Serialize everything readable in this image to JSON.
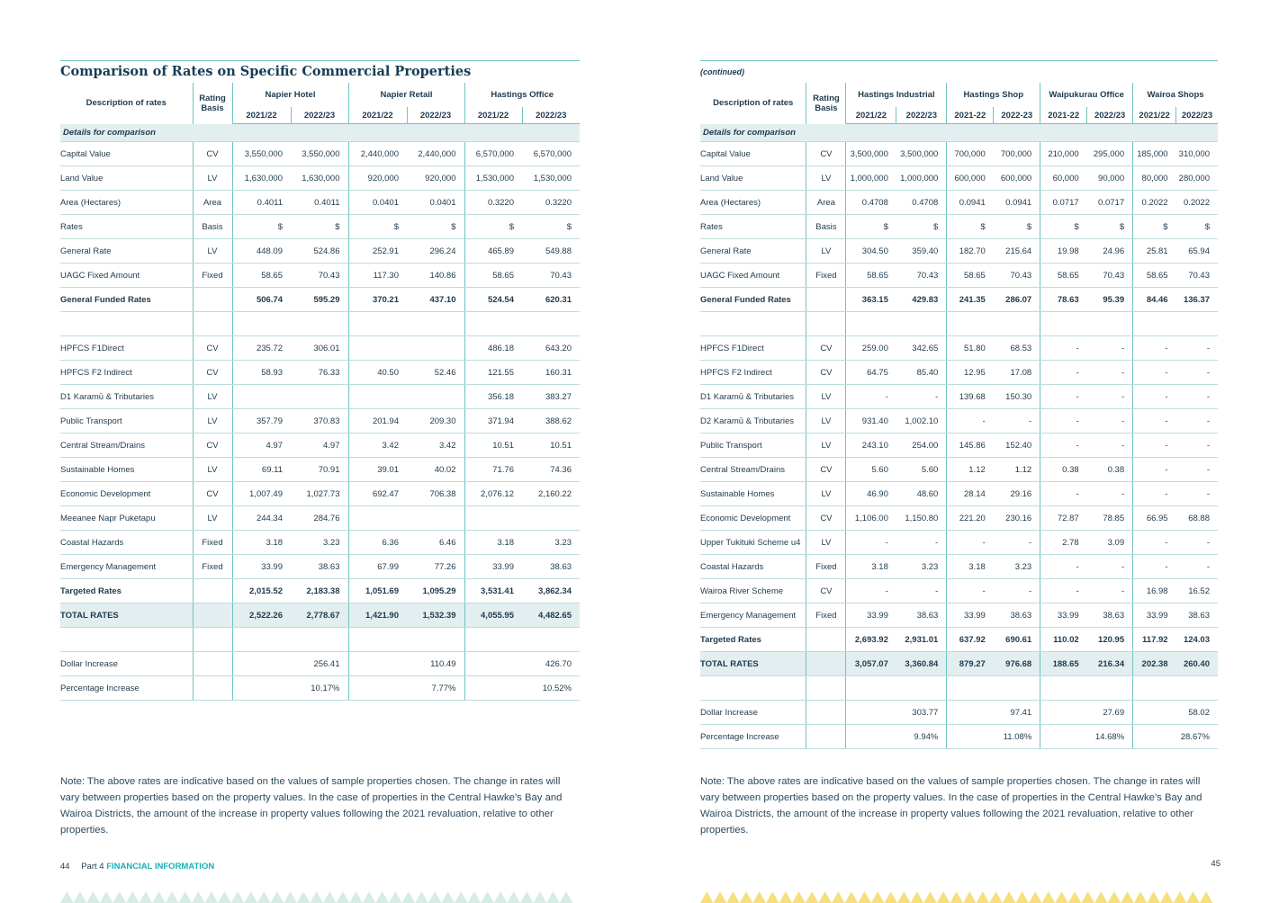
{
  "left": {
    "title": "Comparison of Rates on Specific Commercial Properties",
    "header": {
      "desc": "Description of rates",
      "basis": "Rating Basis",
      "groups": [
        "Napier Hotel",
        "Napier Retail",
        "Hastings Office"
      ],
      "years": [
        "2021/22",
        "2022/23",
        "2021/22",
        "2022/23",
        "2021/22",
        "2022/23"
      ]
    },
    "section_label": "Details for comparison",
    "rows": [
      {
        "label": "Capital Value",
        "basis": "CV",
        "v": [
          "3,550,000",
          "3,550,000",
          "2,440,000",
          "2,440,000",
          "6,570,000",
          "6,570,000"
        ]
      },
      {
        "label": "Land Value",
        "basis": "LV",
        "v": [
          "1,630,000",
          "1,630,000",
          "920,000",
          "920,000",
          "1,530,000",
          "1,530,000"
        ]
      },
      {
        "label": "Area (Hectares)",
        "basis": "Area",
        "v": [
          "0.4011",
          "0.4011",
          "0.0401",
          "0.0401",
          "0.3220",
          "0.3220"
        ]
      },
      {
        "label": "Rates",
        "basis": "Basis",
        "v": [
          "$",
          "$",
          "$",
          "$",
          "$",
          "$"
        ]
      },
      {
        "label": "General Rate",
        "basis": "LV",
        "v": [
          "448.09",
          "524.86",
          "252.91",
          "296.24",
          "465.89",
          "549.88"
        ]
      },
      {
        "label": "UAGC Fixed Amount",
        "basis": "Fixed",
        "v": [
          "58.65",
          "70.43",
          "117.30",
          "140.86",
          "58.65",
          "70.43"
        ]
      },
      {
        "label": "General Funded Rates",
        "basis": "",
        "v": [
          "506.74",
          "595.29",
          "370.21",
          "437.10",
          "524.54",
          "620.31"
        ],
        "bold": true
      },
      {
        "label": "",
        "basis": "",
        "v": [
          "",
          "",
          "",
          "",
          "",
          ""
        ]
      },
      {
        "label": "HPFCS F1Direct",
        "basis": "CV",
        "v": [
          "235.72",
          "306.01",
          "",
          "",
          "486.18",
          "643.20"
        ]
      },
      {
        "label": "HPFCS F2 Indirect",
        "basis": "CV",
        "v": [
          "58.93",
          "76.33",
          "40.50",
          "52.46",
          "121.55",
          "160.31"
        ]
      },
      {
        "label": "D1 Karamū & Tributaries",
        "basis": "LV",
        "v": [
          "",
          "",
          "",
          "",
          "356.18",
          "383.27"
        ]
      },
      {
        "label": "Public Transport",
        "basis": "LV",
        "v": [
          "357.79",
          "370.83",
          "201.94",
          "209.30",
          "371.94",
          "388.62"
        ]
      },
      {
        "label": "Central Stream/Drains",
        "basis": "CV",
        "v": [
          "4.97",
          "4.97",
          "3.42",
          "3.42",
          "10.51",
          "10.51"
        ]
      },
      {
        "label": "Sustainable Homes",
        "basis": "LV",
        "v": [
          "69.11",
          "70.91",
          "39.01",
          "40.02",
          "71.76",
          "74.36"
        ]
      },
      {
        "label": "Economic Development",
        "basis": "CV",
        "v": [
          "1,007.49",
          "1,027.73",
          "692.47",
          "706.38",
          "2,076.12",
          "2,160.22"
        ]
      },
      {
        "label": "Meeanee Napr Puketapu",
        "basis": "LV",
        "v": [
          "244.34",
          "284.76",
          "",
          "",
          "",
          ""
        ]
      },
      {
        "label": "Coastal Hazards",
        "basis": "Fixed",
        "v": [
          "3.18",
          "3.23",
          "6.36",
          "6.46",
          "3.18",
          "3.23"
        ]
      },
      {
        "label": "Emergency Management",
        "basis": "Fixed",
        "v": [
          "33.99",
          "38.63",
          "67.99",
          "77.26",
          "33.99",
          "38.63"
        ]
      },
      {
        "label": "Targeted Rates",
        "basis": "",
        "v": [
          "2,015.52",
          "2,183.38",
          "1,051.69",
          "1,095.29",
          "3,531.41",
          "3,862.34"
        ],
        "bold": true
      },
      {
        "label": "TOTAL RATES",
        "basis": "",
        "v": [
          "2,522.26",
          "2,778.67",
          "1,421.90",
          "1,532.39",
          "4,055.95",
          "4,482.65"
        ],
        "total": true
      },
      {
        "label": "",
        "basis": "",
        "v": [
          "",
          "",
          "",
          "",
          "",
          ""
        ]
      }
    ],
    "increase_rows": [
      {
        "label": "Dollar Increase",
        "v": [
          "256.41",
          "110.49",
          "426.70"
        ]
      },
      {
        "label": "Percentage Increase",
        "v": [
          "10.17%",
          "7.77%",
          "10.52%"
        ]
      }
    ],
    "note": "Note: The above rates are indicative based on the values of sample properties chosen. The change in rates will vary between properties based on the property values. In the case of properties in the Central Hawke’s Bay and Wairoa Districts, the amount of the increase in property values following the 2021 revaluation, relative to other properties.",
    "page_number": "44",
    "part": "Part 4",
    "section": "FINANCIAL INFORMATION"
  },
  "right": {
    "continued": "(continued)",
    "header": {
      "desc": "Description of rates",
      "basis": "Rating Basis",
      "groups": [
        "Hastings Industrial",
        "Hastings Shop",
        "Waipukurau Office",
        "Wairoa Shops"
      ],
      "years": [
        "2021/22",
        "2022/23",
        "2021-22",
        "2022-23",
        "2021-22",
        "2022/23",
        "2021/22",
        "2022/23"
      ]
    },
    "section_label": "Details for comparison",
    "rows": [
      {
        "label": "Capital Value",
        "basis": "CV",
        "v": [
          "3,500,000",
          "3,500,000",
          "700,000",
          "700,000",
          "210,000",
          "295,000",
          "185,000",
          "310,000"
        ]
      },
      {
        "label": "Land Value",
        "basis": "LV",
        "v": [
          "1,000,000",
          "1,000,000",
          "600,000",
          "600,000",
          "60,000",
          "90,000",
          "80,000",
          "280,000"
        ]
      },
      {
        "label": "Area (Hectares)",
        "basis": "Area",
        "v": [
          "0.4708",
          "0.4708",
          "0.0941",
          "0.0941",
          "0.0717",
          "0.0717",
          "0.2022",
          "0.2022"
        ]
      },
      {
        "label": "Rates",
        "basis": "Basis",
        "v": [
          "$",
          "$",
          "$",
          "$",
          "$",
          "$",
          "$",
          "$"
        ]
      },
      {
        "label": "General Rate",
        "basis": "LV",
        "v": [
          "304.50",
          "359.40",
          "182.70",
          "215.64",
          "19.98",
          "24.96",
          "25.81",
          "65.94"
        ]
      },
      {
        "label": "UAGC Fixed Amount",
        "basis": "Fixed",
        "v": [
          "58.65",
          "70.43",
          "58.65",
          "70.43",
          "58.65",
          "70.43",
          "58.65",
          "70.43"
        ]
      },
      {
        "label": "General Funded Rates",
        "basis": "",
        "v": [
          "363.15",
          "429.83",
          "241.35",
          "286.07",
          "78.63",
          "95.39",
          "84.46",
          "136.37"
        ],
        "bold": true
      },
      {
        "label": "",
        "basis": "",
        "v": [
          "",
          "",
          "",
          "",
          "",
          "",
          "",
          ""
        ]
      },
      {
        "label": "HPFCS F1Direct",
        "basis": "CV",
        "v": [
          "259.00",
          "342.65",
          "51.80",
          "68.53",
          "-",
          "-",
          "-",
          "-"
        ]
      },
      {
        "label": "HPFCS F2 Indirect",
        "basis": "CV",
        "v": [
          "64.75",
          "85.40",
          "12.95",
          "17.08",
          "-",
          "-",
          "-",
          "-"
        ]
      },
      {
        "label": "D1 Karamū & Tributaries",
        "basis": "LV",
        "v": [
          "-",
          "-",
          "139.68",
          "150.30",
          "-",
          "-",
          "-",
          "-"
        ]
      },
      {
        "label": "D2 Karamū & Tributaries",
        "basis": "LV",
        "v": [
          "931.40",
          "1,002.10",
          "-",
          "-",
          "-",
          "-",
          "-",
          "-"
        ]
      },
      {
        "label": "Public Transport",
        "basis": "LV",
        "v": [
          "243.10",
          "254.00",
          "145.86",
          "152.40",
          "-",
          "-",
          "-",
          "-"
        ]
      },
      {
        "label": "Central Stream/Drains",
        "basis": "CV",
        "v": [
          "5.60",
          "5.60",
          "1.12",
          "1.12",
          "0.38",
          "0.38",
          "-",
          "-"
        ]
      },
      {
        "label": "Sustainable Homes",
        "basis": "LV",
        "v": [
          "46.90",
          "48.60",
          "28.14",
          "29.16",
          "-",
          "-",
          "-",
          "-"
        ]
      },
      {
        "label": "Economic Development",
        "basis": "CV",
        "v": [
          "1,106.00",
          "1,150.80",
          "221.20",
          "230.16",
          "72.87",
          "78.85",
          "66.95",
          "68.88"
        ]
      },
      {
        "label": "Upper Tukituki Scheme u4",
        "basis": "LV",
        "v": [
          "-",
          "-",
          "-",
          "-",
          "2.78",
          "3.09",
          "-",
          "-"
        ]
      },
      {
        "label": "Coastal Hazards",
        "basis": "Fixed",
        "v": [
          "3.18",
          "3.23",
          "3.18",
          "3.23",
          "-",
          "-",
          "-",
          "-"
        ]
      },
      {
        "label": "Wairoa River Scheme",
        "basis": "CV",
        "v": [
          "-",
          "-",
          "-",
          "-",
          "-",
          "-",
          "16.98",
          "16.52"
        ]
      },
      {
        "label": "Emergency Management",
        "basis": "Fixed",
        "v": [
          "33.99",
          "38.63",
          "33.99",
          "38.63",
          "33.99",
          "38.63",
          "33.99",
          "38.63"
        ]
      },
      {
        "label": "Targeted Rates",
        "basis": "",
        "v": [
          "2,693.92",
          "2,931.01",
          "637.92",
          "690.61",
          "110.02",
          "120.95",
          "117.92",
          "124.03"
        ],
        "bold": true
      },
      {
        "label": "TOTAL RATES",
        "basis": "",
        "v": [
          "3,057.07",
          "3,360.84",
          "879.27",
          "976.68",
          "188.65",
          "216.34",
          "202.38",
          "260.40"
        ],
        "total": true
      },
      {
        "label": "",
        "basis": "",
        "v": [
          "",
          "",
          "",
          "",
          "",
          "",
          "",
          ""
        ]
      }
    ],
    "increase_rows": [
      {
        "label": "Dollar Increase",
        "v": [
          "303.77",
          "97.41",
          "27.69",
          "58.02"
        ]
      },
      {
        "label": "Percentage Increase",
        "v": [
          "9.94%",
          "11.08%",
          "14.68%",
          "28.67%"
        ]
      }
    ],
    "note": "Note: The above rates are indicative based on the values of sample properties chosen. The change in rates will vary between properties based on the property values. In the case of properties in the Central Hawke’s Bay and Wairoa Districts, the amount of the increase in property values following the 2021 revaluation, relative to other properties.",
    "page_number": "45"
  },
  "colors": {
    "heading": "#163d55",
    "rule": "#6fc3bf",
    "band": "#e3eef0",
    "accent": "#19b0b8",
    "pattern_left": "#d6ece6",
    "pattern_right": "#f6df7c"
  }
}
